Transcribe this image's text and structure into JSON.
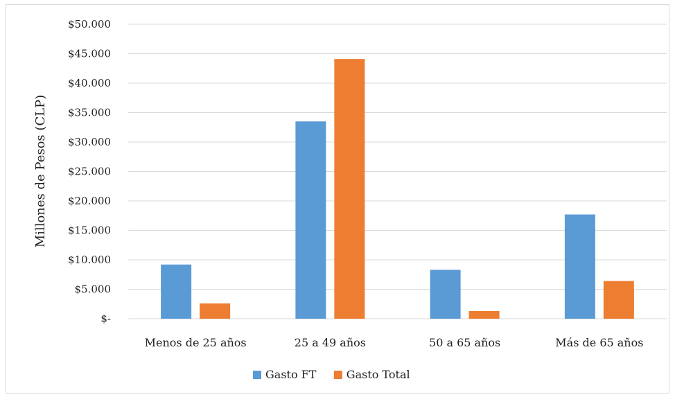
{
  "chart_data": {
    "type": "bar",
    "title": "",
    "xlabel": "",
    "ylabel": "Millones de Pesos (CLP)",
    "categories": [
      "Menos de 25 años",
      "25 a 49 años",
      "50 a 65 años",
      "Más de 65 años"
    ],
    "series": [
      {
        "name": "Gasto FT",
        "color": "#5B9BD5",
        "values": [
          9200,
          33500,
          8300,
          17700
        ]
      },
      {
        "name": "Gasto Total",
        "color": "#ED7D31",
        "values": [
          2600,
          44100,
          1300,
          6400
        ]
      }
    ],
    "ylim": [
      0,
      50000
    ],
    "yticks": [
      0,
      5000,
      10000,
      15000,
      20000,
      25000,
      30000,
      35000,
      40000,
      45000,
      50000
    ],
    "ytick_labels": [
      "$-",
      "$5.000",
      "$10.000",
      "$15.000",
      "$20.000",
      "$25.000",
      "$30.000",
      "$35.000",
      "$40.000",
      "$45.000",
      "$50.000"
    ],
    "grid": true,
    "legend_position": "bottom",
    "gridline_color": "#d9d9d9"
  }
}
